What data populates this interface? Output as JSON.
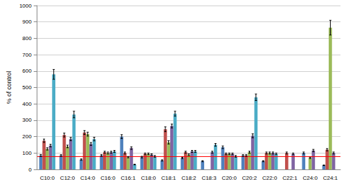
{
  "chart_data": {
    "type": "bar",
    "y_label": "% of control",
    "categories": [
      "C10:0",
      "C12:0",
      "C14:0",
      "C16:0",
      "C16:1",
      "C18:0",
      "C18:1",
      "C18:2",
      "C18:3",
      "C20:0",
      "C20:2",
      "C22:0",
      "C22:1",
      "C24:0",
      "C24:1"
    ],
    "series": [
      {
        "color": "#4f81bd",
        "values": [
          85,
          85,
          60,
          85,
          200,
          75,
          55,
          70,
          50,
          135,
          85,
          50,
          null,
          100,
          25
        ],
        "errors": [
          6,
          5,
          4,
          5,
          12,
          5,
          4,
          4,
          3,
          8,
          5,
          3,
          null,
          6,
          2
        ]
      },
      {
        "color": "#c0504d",
        "values": [
          175,
          210,
          225,
          105,
          100,
          95,
          245,
          105,
          null,
          95,
          85,
          100,
          100,
          null,
          120
        ],
        "errors": [
          10,
          12,
          12,
          6,
          6,
          5,
          15,
          6,
          null,
          5,
          5,
          6,
          6,
          null,
          7
        ]
      },
      {
        "color": "#9bbb59",
        "values": [
          125,
          140,
          215,
          100,
          75,
          95,
          165,
          90,
          null,
          95,
          105,
          100,
          null,
          70,
          865
        ],
        "errors": [
          7,
          8,
          12,
          6,
          4,
          5,
          10,
          5,
          null,
          5,
          6,
          6,
          null,
          4,
          45
        ]
      },
      {
        "color": "#8064a2",
        "values": [
          145,
          185,
          155,
          105,
          130,
          90,
          265,
          110,
          105,
          95,
          205,
          100,
          95,
          115,
          100
        ],
        "errors": [
          8,
          10,
          9,
          6,
          8,
          5,
          12,
          6,
          6,
          5,
          12,
          6,
          5,
          7,
          6
        ]
      },
      {
        "color": "#4bacc6",
        "values": [
          580,
          335,
          185,
          110,
          30,
          80,
          340,
          110,
          150,
          80,
          440,
          95,
          null,
          null,
          null
        ],
        "errors": [
          30,
          20,
          11,
          6,
          2,
          5,
          15,
          6,
          8,
          5,
          20,
          5,
          null,
          null,
          null
        ]
      }
    ],
    "reference_line": {
      "value": 80,
      "color": "#ff0000"
    },
    "ylim": [
      0,
      1000
    ],
    "yticks": [
      0,
      100,
      200,
      300,
      400,
      500,
      600,
      700,
      800,
      900,
      1000
    ],
    "grid": true
  }
}
